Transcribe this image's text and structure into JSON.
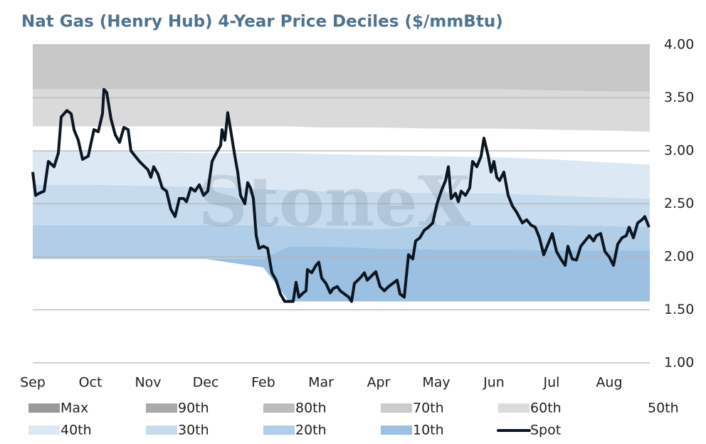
{
  "chart_data": {
    "type": "area",
    "title": "Nat Gas (Henry Hub) 4-Year Price Deciles ($/mmBtu)",
    "watermark": "StoneX",
    "xlim": [
      0,
      867
    ],
    "xticks": [
      {
        "value": 0,
        "label": "Sep"
      },
      {
        "value": 81,
        "label": "Oct"
      },
      {
        "value": 162,
        "label": "Nov"
      },
      {
        "value": 243,
        "label": "Dec"
      },
      {
        "value": 324,
        "label": "Feb"
      },
      {
        "value": 405,
        "label": "Mar"
      },
      {
        "value": 486,
        "label": "Apr"
      },
      {
        "value": 567,
        "label": "May"
      },
      {
        "value": 648,
        "label": "Jun"
      },
      {
        "value": 729,
        "label": "Jul"
      },
      {
        "value": 810,
        "label": "Aug"
      }
    ],
    "ylim": [
      1,
      4
    ],
    "yticks": [
      {
        "value": 1,
        "label": "1.00"
      },
      {
        "value": 1.5,
        "label": "1.50"
      },
      {
        "value": 2,
        "label": "2.00"
      },
      {
        "value": 2.5,
        "label": "2.50"
      },
      {
        "value": 3,
        "label": "3.00"
      },
      {
        "value": 3.5,
        "label": "3.50"
      },
      {
        "value": 4,
        "label": "4.00"
      }
    ],
    "grid": true,
    "x": [
      0,
      81,
      162,
      243,
      324,
      360,
      405,
      486,
      567,
      648,
      729,
      810,
      867
    ],
    "series": [
      {
        "name": "Max",
        "color": "#c8c8c8",
        "values": [
          3.58,
          3.58,
          3.58,
          3.58,
          3.58,
          3.58,
          3.58,
          3.58,
          3.58,
          3.58,
          3.57,
          3.56,
          3.56
        ]
      },
      {
        "name": "90th",
        "color": "#dadada",
        "values": [
          3.23,
          3.23,
          3.23,
          3.23,
          3.23,
          3.23,
          3.22,
          3.22,
          3.21,
          3.21,
          3.2,
          3.19,
          3.18
        ]
      },
      {
        "name": "80th",
        "color": "#d2d2d2",
        "values": [
          3.23,
          3.23,
          3.23,
          3.23,
          3.23,
          3.23,
          3.22,
          3.22,
          3.21,
          3.21,
          3.2,
          3.19,
          3.18
        ]
      },
      {
        "name": "70th",
        "color": "#d9d9d9",
        "values": [
          3.23,
          3.23,
          3.23,
          3.23,
          3.23,
          3.23,
          3.22,
          3.22,
          3.21,
          3.21,
          3.2,
          3.19,
          3.18
        ]
      },
      {
        "name": "60th",
        "color": "#e4e4e4",
        "values": [
          3.23,
          3.23,
          3.23,
          3.23,
          3.23,
          3.23,
          3.22,
          3.22,
          3.21,
          3.21,
          3.2,
          3.19,
          3.18
        ]
      },
      {
        "name": "50th",
        "color": "#ffffff",
        "values": [
          3.0,
          3.0,
          2.99,
          2.98,
          2.98,
          2.98,
          2.97,
          2.96,
          2.95,
          2.94,
          2.92,
          2.89,
          2.87
        ]
      },
      {
        "name": "40th",
        "color": "#dce9f5",
        "values": [
          2.68,
          2.68,
          2.67,
          2.66,
          2.64,
          2.63,
          2.62,
          2.61,
          2.6,
          2.6,
          2.58,
          2.56,
          2.55
        ]
      },
      {
        "name": "30th",
        "color": "#c6dbee",
        "values": [
          2.3,
          2.3,
          2.3,
          2.3,
          2.3,
          2.29,
          2.27,
          2.26,
          2.3,
          2.3,
          2.3,
          2.29,
          2.28
        ]
      },
      {
        "name": "20th",
        "color": "#b1cee8",
        "values": [
          1.98,
          1.98,
          1.98,
          1.98,
          1.98,
          2.1,
          2.1,
          2.08,
          2.07,
          2.07,
          2.06,
          2.06,
          2.06
        ]
      },
      {
        "name": "10th",
        "color": "#9bc0e2",
        "values": [
          1.98,
          1.98,
          1.98,
          1.98,
          1.9,
          1.58,
          1.58,
          1.58,
          1.58,
          1.58,
          1.58,
          1.58,
          1.58
        ]
      },
      {
        "name": "Spot",
        "color": "#0b1622",
        "type": "line",
        "x": [
          0,
          4,
          9,
          16,
          22,
          30,
          36,
          40,
          48,
          54,
          58,
          64,
          70,
          78,
          86,
          92,
          98,
          100,
          104,
          110,
          116,
          122,
          128,
          134,
          138,
          144,
          150,
          156,
          162,
          166,
          170,
          176,
          182,
          188,
          194,
          200,
          206,
          212,
          216,
          222,
          228,
          234,
          240,
          246,
          252,
          258,
          264,
          266,
          270,
          274,
          278,
          284,
          288,
          292,
          298,
          302,
          306,
          310,
          314,
          318,
          324,
          330,
          336,
          342,
          348,
          354,
          362,
          366,
          370,
          374,
          380,
          384,
          386,
          392,
          398,
          402,
          406,
          412,
          418,
          422,
          428,
          432,
          438,
          444,
          448,
          452,
          460,
          466,
          470,
          476,
          482,
          488,
          494,
          500,
          506,
          512,
          516,
          522,
          528,
          534,
          538,
          544,
          550,
          556,
          562,
          568,
          574,
          580,
          584,
          588,
          594,
          598,
          602,
          608,
          614,
          618,
          624,
          630,
          634,
          640,
          644,
          648,
          652,
          656,
          662,
          668,
          674,
          680,
          688,
          694,
          700,
          706,
          712,
          718,
          724,
          730,
          736,
          742,
          748,
          752,
          758,
          764,
          770,
          776,
          782,
          788,
          792,
          798,
          804,
          810,
          816,
          822,
          828,
          834,
          838,
          844,
          850,
          856,
          860,
          866
        ],
        "values": [
          2.8,
          2.58,
          2.6,
          2.62,
          2.9,
          2.85,
          2.98,
          3.32,
          3.38,
          3.35,
          3.2,
          3.1,
          2.92,
          2.95,
          3.2,
          3.18,
          3.35,
          3.58,
          3.55,
          3.3,
          3.15,
          3.08,
          3.22,
          3.2,
          3.0,
          2.95,
          2.9,
          2.86,
          2.82,
          2.75,
          2.85,
          2.78,
          2.65,
          2.62,
          2.45,
          2.38,
          2.55,
          2.55,
          2.52,
          2.65,
          2.62,
          2.68,
          2.58,
          2.62,
          2.9,
          2.98,
          3.05,
          3.2,
          3.1,
          3.36,
          3.2,
          2.95,
          2.8,
          2.58,
          2.5,
          2.7,
          2.65,
          2.55,
          2.2,
          2.08,
          2.1,
          2.08,
          1.85,
          1.78,
          1.65,
          1.58,
          1.58,
          1.58,
          1.76,
          1.62,
          1.66,
          1.68,
          1.88,
          1.85,
          1.92,
          1.95,
          1.8,
          1.75,
          1.66,
          1.7,
          1.72,
          1.68,
          1.65,
          1.62,
          1.58,
          1.75,
          1.8,
          1.85,
          1.78,
          1.82,
          1.86,
          1.72,
          1.68,
          1.72,
          1.75,
          1.78,
          1.65,
          1.62,
          2.02,
          1.98,
          2.15,
          2.18,
          2.25,
          2.28,
          2.32,
          2.5,
          2.62,
          2.72,
          2.85,
          2.55,
          2.6,
          2.52,
          2.62,
          2.58,
          2.65,
          2.9,
          2.85,
          2.95,
          3.12,
          2.95,
          2.8,
          2.9,
          2.75,
          2.72,
          2.8,
          2.58,
          2.48,
          2.42,
          2.32,
          2.35,
          2.3,
          2.28,
          2.18,
          2.02,
          2.12,
          2.22,
          2.05,
          1.98,
          1.92,
          2.1,
          1.98,
          1.97,
          2.1,
          2.15,
          2.2,
          2.15,
          2.2,
          2.22,
          2.05,
          2.0,
          1.92,
          2.12,
          2.18,
          2.2,
          2.28,
          2.18,
          2.32,
          2.35,
          2.38,
          2.28
        ]
      }
    ]
  }
}
